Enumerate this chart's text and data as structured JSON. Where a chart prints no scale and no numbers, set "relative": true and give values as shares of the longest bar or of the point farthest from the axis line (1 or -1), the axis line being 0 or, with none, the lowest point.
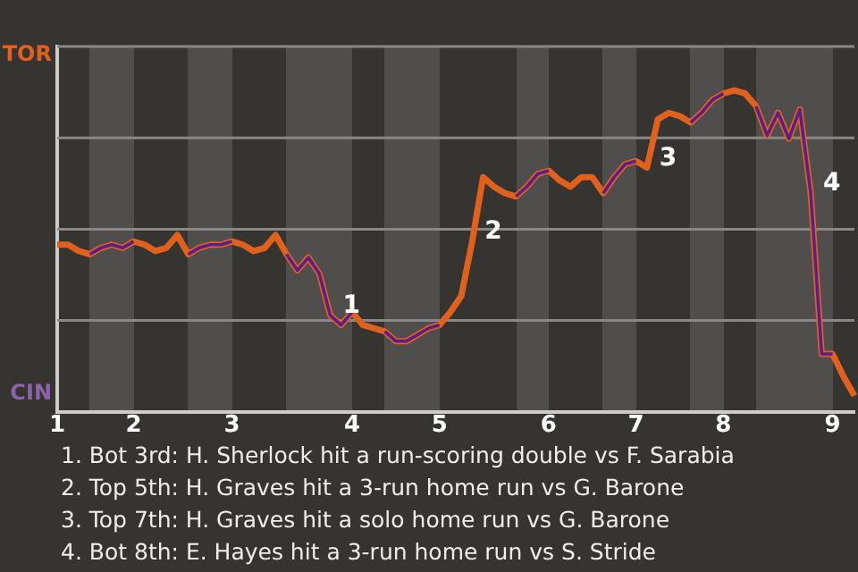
{
  "chart_data": {
    "type": "line",
    "relative": true,
    "categories": [
      "1",
      null,
      null,
      null,
      null,
      null,
      null,
      "2",
      null,
      null,
      null,
      null,
      null,
      null,
      null,
      null,
      "3",
      null,
      null,
      null,
      null,
      null,
      null,
      null,
      null,
      null,
      null,
      "4",
      null,
      null,
      null,
      null,
      null,
      null,
      null,
      "5",
      null,
      null,
      null,
      null,
      null,
      null,
      null,
      null,
      null,
      "6",
      null,
      null,
      null,
      null,
      null,
      null,
      null,
      "7",
      null,
      null,
      null,
      null,
      null,
      null,
      null,
      "8",
      null,
      null,
      null,
      null,
      null,
      null,
      null,
      null,
      null,
      "9",
      null,
      null
    ],
    "series": [
      {
        "color": "#e0601e",
        "values": [
          0.52,
          0.52,
          0.5,
          0.49,
          0.51,
          0.52,
          0.51,
          0.53,
          0.52,
          0.5,
          0.51,
          0.55,
          0.49,
          0.51,
          0.52,
          0.52,
          0.53,
          0.52,
          0.5,
          0.51,
          0.55,
          0.49,
          0.44,
          0.48,
          0.43,
          0.3,
          0.27,
          0.31,
          0.27,
          0.26,
          0.25,
          0.22,
          0.22,
          0.24,
          0.26,
          0.27,
          0.31,
          0.36,
          0.53,
          0.73,
          0.7,
          0.68,
          0.67,
          0.7,
          0.74,
          0.75,
          0.72,
          0.7,
          0.73,
          0.73,
          0.68,
          0.73,
          0.77,
          0.78,
          0.76,
          0.91,
          0.93,
          0.92,
          0.9,
          0.93,
          0.97,
          0.99,
          1,
          0.99,
          0.95,
          0.86,
          0.93,
          0.85,
          0.94,
          0.68,
          0.18,
          0.18,
          0.11,
          0.05
        ]
      },
      {
        "color": "#5c1f8a",
        "values": [
          null,
          null,
          null,
          0.49,
          0.51,
          0.52,
          0.51,
          0.53,
          null,
          null,
          null,
          null,
          0.49,
          0.51,
          0.52,
          0.52,
          0.53,
          null,
          null,
          null,
          null,
          0.49,
          0.44,
          0.48,
          0.43,
          0.3,
          0.27,
          0.31,
          null,
          null,
          0.25,
          0.22,
          0.22,
          0.24,
          0.26,
          0.27,
          null,
          null,
          null,
          null,
          null,
          null,
          0.67,
          0.7,
          0.74,
          0.75,
          null,
          null,
          null,
          null,
          0.68,
          0.73,
          0.77,
          0.78,
          null,
          null,
          null,
          null,
          0.9,
          0.93,
          0.97,
          0.99,
          null,
          null,
          0.95,
          0.86,
          0.93,
          0.85,
          0.94,
          0.68,
          0.18,
          0.18,
          null,
          null
        ]
      }
    ],
    "grid": "y",
    "legend": false,
    "marker": "none",
    "line_style": "solid",
    "annotations": [
      "TOR",
      "CIN",
      "1",
      "2",
      "3",
      "4",
      "1. Bot 3rd: H. Sherlock hit a run-scoring double vs F. Sarabia",
      "2. Top 5th: H. Graves hit a 3-run home run vs G. Barone",
      "3. Top 7th: H. Graves hit a solo home run vs G. Barone",
      "4. Bot 8th: E. Hayes hit a 3-run home run vs S. Stride"
    ]
  }
}
